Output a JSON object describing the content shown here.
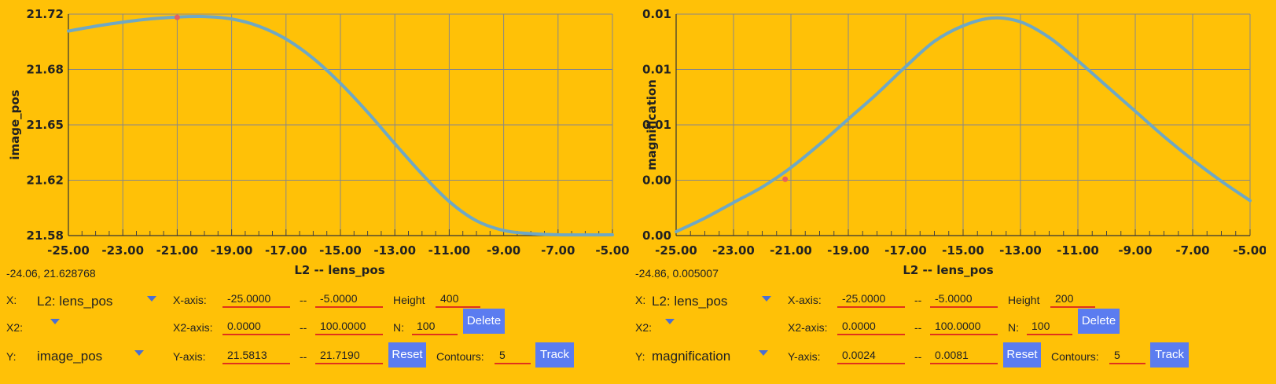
{
  "colors": {
    "background": "#FFC107",
    "curve": "#6FA8C4",
    "marker": "#E86060",
    "field_underline": "#E0321C",
    "button": "#5B7CF0",
    "grid": "#888888"
  },
  "panels": [
    {
      "coord_readout": "-24.06, 21.628768",
      "x_label": "X:",
      "x_value": "L2: lens_pos",
      "xaxis_label": "X-axis:",
      "xaxis_min": "-25.0000",
      "xaxis_max": "-5.0000",
      "height_label": "Height",
      "height_value": "400",
      "x2_label": "X2:",
      "x2axis_label": "X2-axis:",
      "x2axis_min": "0.0000",
      "x2axis_max": "100.0000",
      "n_label": "N:",
      "n_value": "100",
      "delete_label": "Delete",
      "y_label": "Y:",
      "y_value": "image_pos",
      "yaxis_label": "Y-axis:",
      "yaxis_min": "21.5813",
      "yaxis_max": "21.7190",
      "reset_label": "Reset",
      "contours_label": "Contours:",
      "contours_value": "5",
      "track_label": "Track",
      "dash": "--"
    },
    {
      "coord_readout": "-24.86, 0.005007",
      "x_label": "X:",
      "x_value": "L2: lens_pos",
      "xaxis_label": "X-axis:",
      "xaxis_min": "-25.0000",
      "xaxis_max": "-5.0000",
      "height_label": "Height",
      "height_value": "200",
      "x2_label": "X2:",
      "x2axis_label": "X2-axis:",
      "x2axis_min": "0.0000",
      "x2axis_max": "100.0000",
      "n_label": "N:",
      "n_value": "100",
      "delete_label": "Delete",
      "y_label": "Y:",
      "y_value": "magnification",
      "yaxis_label": "Y-axis:",
      "yaxis_min": "0.0024",
      "yaxis_max": "0.0081",
      "reset_label": "Reset",
      "contours_label": "Contours:",
      "contours_value": "5",
      "track_label": "Track",
      "dash": "--"
    }
  ],
  "chart_data": [
    {
      "type": "line",
      "xlabel": "L2 -- lens_pos",
      "ylabel": "image_pos",
      "xlim": [
        -25,
        -5
      ],
      "ylim": [
        21.5813,
        21.719
      ],
      "x_ticks": [
        "-25.00",
        "-23.00",
        "-21.00",
        "-19.00",
        "-17.00",
        "-15.00",
        "-13.00",
        "-11.00",
        "-9.00",
        "-7.00",
        "-5.00"
      ],
      "y_ticks": [
        "21.58",
        "21.62",
        "21.65",
        "21.68",
        "21.72"
      ],
      "grid": true,
      "marker": {
        "x": -21.0,
        "y": 21.717
      },
      "series": [
        {
          "x": [
            -25,
            -24,
            -23,
            -22,
            -21,
            -20,
            -19,
            -18,
            -17,
            -16,
            -15,
            -14,
            -13,
            -12,
            -11,
            -10,
            -9,
            -8,
            -7,
            -6,
            -5
          ],
          "y": [
            21.7085,
            21.7115,
            21.714,
            21.716,
            21.7172,
            21.7175,
            21.716,
            21.7115,
            21.7035,
            21.6915,
            21.676,
            21.658,
            21.6385,
            21.6195,
            21.6025,
            21.5905,
            21.5845,
            21.5825,
            21.5818,
            21.5817,
            21.5818
          ]
        }
      ]
    },
    {
      "type": "line",
      "xlabel": "L2 -- lens_pos",
      "ylabel": "magnification",
      "xlim": [
        -25,
        -5
      ],
      "ylim": [
        0.0024,
        0.0081
      ],
      "x_ticks": [
        "-25.00",
        "-23.00",
        "-21.00",
        "-19.00",
        "-17.00",
        "-15.00",
        "-13.00",
        "-11.00",
        "-9.00",
        "-7.00",
        "-5.00"
      ],
      "y_ticks": [
        "0.00",
        "0.00",
        "0.01",
        "0.01",
        "0.01"
      ],
      "grid": true,
      "marker": {
        "x": -21.2,
        "y": 0.00385
      },
      "series": [
        {
          "x": [
            -25,
            -24,
            -23,
            -22,
            -21,
            -20,
            -19,
            -18,
            -17,
            -16,
            -15,
            -14,
            -13,
            -12,
            -11,
            -10,
            -9,
            -8,
            -7,
            -6,
            -5
          ],
          "y": [
            0.0025,
            0.00285,
            0.00325,
            0.00365,
            0.00415,
            0.00475,
            0.0054,
            0.00605,
            0.00675,
            0.0074,
            0.0078,
            0.008,
            0.0079,
            0.0075,
            0.0069,
            0.00625,
            0.0056,
            0.00495,
            0.00435,
            0.0038,
            0.0033
          ]
        }
      ]
    }
  ]
}
